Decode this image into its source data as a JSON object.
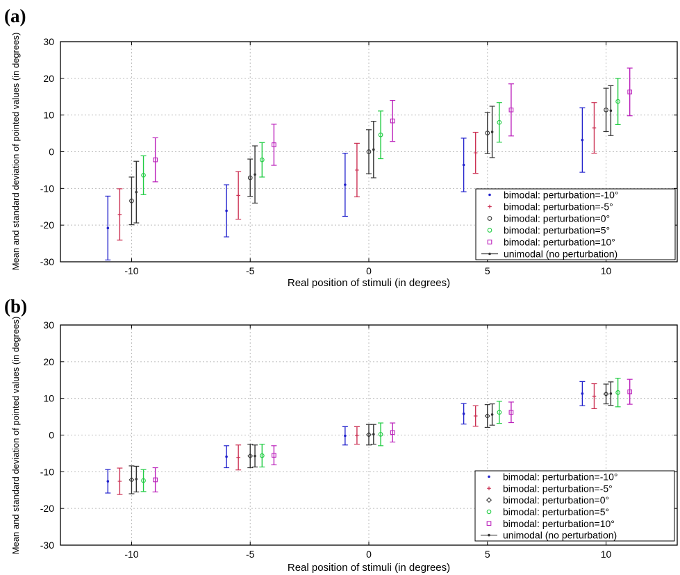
{
  "panels": [
    {
      "label": "(a)",
      "xlabel": "Real position of stimuli (in degrees)",
      "ylabel": "Mean and standard deviation of pointed values  (in degrees)",
      "chart_data": {
        "type": "scatter",
        "xlim": [
          -13,
          13
        ],
        "ylim": [
          -30,
          30
        ],
        "xticks": [
          -10,
          -5,
          0,
          5,
          10
        ],
        "yticks": [
          -30,
          -20,
          -10,
          0,
          10,
          20,
          30
        ],
        "grid": true,
        "legend_position": "bottom-right",
        "series": [
          {
            "name": "bimodal: perturbation=-10°",
            "color": "#2222cc",
            "marker": "dot",
            "points": [
              {
                "x": -11,
                "mean": -20.8,
                "sd": 8.7
              },
              {
                "x": -6,
                "mean": -16.1,
                "sd": 7.1
              },
              {
                "x": -1,
                "mean": -9.0,
                "sd": 8.6
              },
              {
                "x": 4,
                "mean": -3.6,
                "sd": 7.3
              },
              {
                "x": 9,
                "mean": 3.2,
                "sd": 8.8
              }
            ]
          },
          {
            "name": "bimodal: perturbation=-5°",
            "color": "#cc3355",
            "marker": "plus",
            "points": [
              {
                "x": -10.5,
                "mean": -17.1,
                "sd": 7.0
              },
              {
                "x": -5.5,
                "mean": -11.9,
                "sd": 6.5
              },
              {
                "x": -0.5,
                "mean": -5.0,
                "sd": 7.3
              },
              {
                "x": 4.5,
                "mean": -0.3,
                "sd": 5.6
              },
              {
                "x": 9.5,
                "mean": 6.5,
                "sd": 6.9
              }
            ]
          },
          {
            "name": "bimodal: perturbation=0°",
            "color": "#333333",
            "marker": "circle",
            "points": [
              {
                "x": -10,
                "mean": -13.4,
                "sd": 6.5
              },
              {
                "x": -5,
                "mean": -7.1,
                "sd": 5.1
              },
              {
                "x": 0,
                "mean": 0.0,
                "sd": 6.0
              },
              {
                "x": 5,
                "mean": 5.1,
                "sd": 5.6
              },
              {
                "x": 10,
                "mean": 11.4,
                "sd": 5.9
              }
            ]
          },
          {
            "name": "bimodal: perturbation=5°",
            "color": "#22cc44",
            "marker": "circle",
            "points": [
              {
                "x": -9.5,
                "mean": -6.4,
                "sd": 5.3
              },
              {
                "x": -4.5,
                "mean": -2.2,
                "sd": 4.7
              },
              {
                "x": 0.5,
                "mean": 4.6,
                "sd": 6.5
              },
              {
                "x": 5.5,
                "mean": 8.0,
                "sd": 5.4
              },
              {
                "x": 10.5,
                "mean": 13.7,
                "sd": 6.3
              }
            ]
          },
          {
            "name": "bimodal: perturbation=10°",
            "color": "#bb22bb",
            "marker": "square",
            "points": [
              {
                "x": -9,
                "mean": -2.2,
                "sd": 6.0
              },
              {
                "x": -4,
                "mean": 1.9,
                "sd": 5.6
              },
              {
                "x": 1,
                "mean": 8.4,
                "sd": 5.6
              },
              {
                "x": 6,
                "mean": 11.4,
                "sd": 7.1
              },
              {
                "x": 11,
                "mean": 16.3,
                "sd": 6.5
              }
            ]
          },
          {
            "name": "unimodal (no perturbation)",
            "color": "#333333",
            "marker": "dot",
            "points": [
              {
                "x": -9.8,
                "mean": -11.0,
                "sd": 8.4
              },
              {
                "x": -4.8,
                "mean": -6.2,
                "sd": 7.8
              },
              {
                "x": 0.2,
                "mean": 0.6,
                "sd": 7.7
              },
              {
                "x": 5.2,
                "mean": 5.4,
                "sd": 7.0
              },
              {
                "x": 10.2,
                "mean": 11.2,
                "sd": 6.8
              }
            ]
          }
        ]
      }
    },
    {
      "label": "(b)",
      "xlabel": "Real position of stimuli (in degrees)",
      "ylabel": "Mean and standard deviation of pointed values  (in degrees)",
      "chart_data": {
        "type": "scatter",
        "xlim": [
          -13,
          13
        ],
        "ylim": [
          -30,
          30
        ],
        "xticks": [
          -10,
          -5,
          0,
          5,
          10
        ],
        "yticks": [
          -30,
          -20,
          -10,
          0,
          10,
          20,
          30
        ],
        "grid": true,
        "legend_position": "bottom-right",
        "series": [
          {
            "name": "bimodal: perturbation=-10°",
            "color": "#2222cc",
            "marker": "dot",
            "points": [
              {
                "x": -11,
                "mean": -12.6,
                "sd": 3.2
              },
              {
                "x": -6,
                "mean": -5.9,
                "sd": 3.0
              },
              {
                "x": -1,
                "mean": -0.2,
                "sd": 2.5
              },
              {
                "x": 4,
                "mean": 5.8,
                "sd": 2.8
              },
              {
                "x": 9,
                "mean": 11.3,
                "sd": 3.3
              }
            ]
          },
          {
            "name": "bimodal: perturbation=-5°",
            "color": "#cc3355",
            "marker": "plus",
            "points": [
              {
                "x": -10.5,
                "mean": -12.6,
                "sd": 3.6
              },
              {
                "x": -5.5,
                "mean": -6.1,
                "sd": 3.4
              },
              {
                "x": -0.5,
                "mean": -0.1,
                "sd": 2.4
              },
              {
                "x": 4.5,
                "mean": 5.2,
                "sd": 2.8
              },
              {
                "x": 9.5,
                "mean": 10.6,
                "sd": 3.4
              }
            ]
          },
          {
            "name": "bimodal: perturbation=0°",
            "color": "#333333",
            "marker": "diamond",
            "points": [
              {
                "x": -10,
                "mean": -12.2,
                "sd": 3.8
              },
              {
                "x": -5,
                "mean": -5.7,
                "sd": 3.2
              },
              {
                "x": 0,
                "mean": 0.1,
                "sd": 2.8
              },
              {
                "x": 5,
                "mean": 5.2,
                "sd": 3.1
              },
              {
                "x": 10,
                "mean": 11.2,
                "sd": 2.7
              }
            ]
          },
          {
            "name": "bimodal: perturbation=5°",
            "color": "#22cc44",
            "marker": "circle",
            "points": [
              {
                "x": -9.5,
                "mean": -12.4,
                "sd": 3.0
              },
              {
                "x": -4.5,
                "mean": -5.6,
                "sd": 3.1
              },
              {
                "x": 0.5,
                "mean": 0.2,
                "sd": 3.1
              },
              {
                "x": 5.5,
                "mean": 6.2,
                "sd": 3.0
              },
              {
                "x": 10.5,
                "mean": 11.6,
                "sd": 3.9
              }
            ]
          },
          {
            "name": "bimodal: perturbation=10°",
            "color": "#bb22bb",
            "marker": "square",
            "points": [
              {
                "x": -9,
                "mean": -12.2,
                "sd": 3.3
              },
              {
                "x": -4,
                "mean": -5.5,
                "sd": 2.6
              },
              {
                "x": 1,
                "mean": 0.7,
                "sd": 2.6
              },
              {
                "x": 6,
                "mean": 6.2,
                "sd": 2.8
              },
              {
                "x": 11,
                "mean": 11.8,
                "sd": 3.4
              }
            ]
          },
          {
            "name": "unimodal (no perturbation)",
            "color": "#333333",
            "marker": "dot",
            "points": [
              {
                "x": -9.8,
                "mean": -12.0,
                "sd": 3.5
              },
              {
                "x": -4.8,
                "mean": -5.7,
                "sd": 3.0
              },
              {
                "x": 0.2,
                "mean": 0.2,
                "sd": 2.7
              },
              {
                "x": 5.2,
                "mean": 5.6,
                "sd": 2.9
              },
              {
                "x": 10.2,
                "mean": 11.3,
                "sd": 3.2
              }
            ]
          }
        ]
      }
    }
  ]
}
